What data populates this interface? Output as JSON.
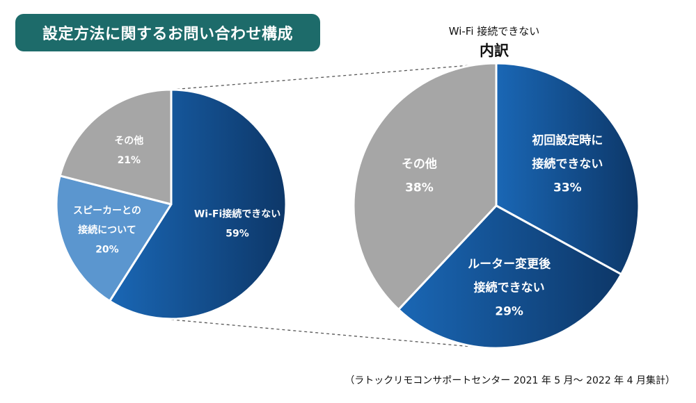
{
  "title": "設定方法に関するお問い合わせ構成",
  "breakdown_header": {
    "subtitle": "Wi-Fi 接続できない",
    "title": "内訳"
  },
  "footnote": "（ラトックリモコンサポートセンター 2021 年 5 月〜 2022 年 4 月集計）",
  "colors": {
    "badge": "#1d6b6a",
    "gray": "#a6a6a6",
    "light_blue": "#5b96cf",
    "blue_start": "#1a67b5",
    "blue_end": "#0d3768"
  },
  "chart_data": [
    {
      "type": "pie",
      "title": "設定方法に関するお問い合わせ構成",
      "slices": [
        {
          "lines": [
            "Wi-Fi接続できない"
          ],
          "value": 59,
          "pct": "59%"
        },
        {
          "lines": [
            "スピーカーとの",
            "接続について"
          ],
          "value": 20,
          "pct": "20%"
        },
        {
          "lines": [
            "その他"
          ],
          "value": 21,
          "pct": "21%"
        }
      ]
    },
    {
      "type": "pie",
      "title": "Wi-Fi 接続できない 内訳",
      "slices": [
        {
          "lines": [
            "初回設定時に",
            "接続できない"
          ],
          "value": 33,
          "pct": "33%"
        },
        {
          "lines": [
            "ルーター変更後",
            "接続できない"
          ],
          "value": 29,
          "pct": "29%"
        },
        {
          "lines": [
            "その他"
          ],
          "value": 38,
          "pct": "38%"
        }
      ]
    }
  ]
}
